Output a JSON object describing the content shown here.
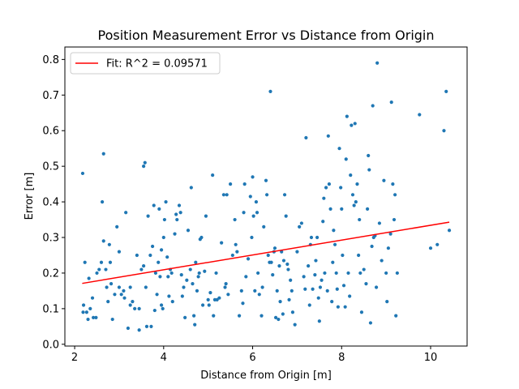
{
  "chart_data": {
    "type": "scatter",
    "title": "Position Measurement Error vs Distance from Origin",
    "xlabel": "Distance from Origin [m]",
    "ylabel": "Error [m]",
    "xlim": [
      1.78,
      10.82
    ],
    "ylim": [
      -0.005,
      0.835
    ],
    "xticks": [
      2,
      4,
      6,
      8,
      10
    ],
    "yticks": [
      0.0,
      0.1,
      0.2,
      0.3,
      0.4,
      0.5,
      0.6,
      0.7,
      0.8
    ],
    "grid": false,
    "legend_position": "top-left",
    "legend": [
      {
        "label": "Fit: R^2 = 0.09571",
        "color": "#ff0000"
      }
    ],
    "fit_line": {
      "x": [
        2.17,
        10.42
      ],
      "y": [
        0.171,
        0.343
      ],
      "color": "#ff0000"
    },
    "point_color": "#1f77b4",
    "points": [
      [
        2.18,
        0.48
      ],
      [
        2.23,
        0.23
      ],
      [
        2.2,
        0.11
      ],
      [
        2.19,
        0.09
      ],
      [
        2.27,
        0.09
      ],
      [
        2.3,
        0.07
      ],
      [
        2.32,
        0.185
      ],
      [
        2.35,
        0.1
      ],
      [
        2.4,
        0.13
      ],
      [
        2.42,
        0.075
      ],
      [
        2.48,
        0.075
      ],
      [
        2.5,
        0.2
      ],
      [
        2.55,
        0.21
      ],
      [
        2.6,
        0.23
      ],
      [
        2.62,
        0.4
      ],
      [
        2.65,
        0.535
      ],
      [
        2.65,
        0.29
      ],
      [
        2.7,
        0.21
      ],
      [
        2.72,
        0.16
      ],
      [
        2.75,
        0.12
      ],
      [
        2.78,
        0.28
      ],
      [
        2.8,
        0.23
      ],
      [
        2.82,
        0.17
      ],
      [
        2.85,
        0.07
      ],
      [
        2.9,
        0.14
      ],
      [
        2.95,
        0.33
      ],
      [
        3.0,
        0.26
      ],
      [
        3.0,
        0.16
      ],
      [
        3.05,
        0.14
      ],
      [
        3.1,
        0.15
      ],
      [
        3.12,
        0.13
      ],
      [
        3.15,
        0.37
      ],
      [
        3.2,
        0.045
      ],
      [
        3.25,
        0.11
      ],
      [
        3.25,
        0.16
      ],
      [
        3.3,
        0.12
      ],
      [
        3.35,
        0.1
      ],
      [
        3.4,
        0.25
      ],
      [
        3.45,
        0.1
      ],
      [
        3.45,
        0.04
      ],
      [
        3.5,
        0.21
      ],
      [
        3.55,
        0.22
      ],
      [
        3.55,
        0.5
      ],
      [
        3.58,
        0.51
      ],
      [
        3.6,
        0.16
      ],
      [
        3.62,
        0.05
      ],
      [
        3.65,
        0.36
      ],
      [
        3.7,
        0.25
      ],
      [
        3.72,
        0.05
      ],
      [
        3.75,
        0.275
      ],
      [
        3.78,
        0.39
      ],
      [
        3.8,
        0.095
      ],
      [
        3.82,
        0.2
      ],
      [
        3.85,
        0.14
      ],
      [
        3.88,
        0.23
      ],
      [
        3.9,
        0.38
      ],
      [
        3.92,
        0.19
      ],
      [
        3.95,
        0.265
      ],
      [
        3.95,
        0.11
      ],
      [
        3.98,
        0.1
      ],
      [
        4.0,
        0.3
      ],
      [
        4.02,
        0.35
      ],
      [
        4.05,
        0.4
      ],
      [
        4.08,
        0.245
      ],
      [
        4.1,
        0.19
      ],
      [
        4.12,
        0.135
      ],
      [
        4.15,
        0.21
      ],
      [
        4.18,
        0.2
      ],
      [
        4.2,
        0.12
      ],
      [
        4.25,
        0.31
      ],
      [
        4.28,
        0.365
      ],
      [
        4.3,
        0.35
      ],
      [
        4.35,
        0.39
      ],
      [
        4.38,
        0.37
      ],
      [
        4.4,
        0.195
      ],
      [
        4.42,
        0.135
      ],
      [
        4.45,
        0.16
      ],
      [
        4.48,
        0.075
      ],
      [
        4.52,
        0.18
      ],
      [
        4.55,
        0.32
      ],
      [
        4.6,
        0.21
      ],
      [
        4.62,
        0.44
      ],
      [
        4.65,
        0.17
      ],
      [
        4.68,
        0.08
      ],
      [
        4.7,
        0.055
      ],
      [
        4.72,
        0.23
      ],
      [
        4.75,
        0.15
      ],
      [
        4.78,
        0.19
      ],
      [
        4.8,
        0.2
      ],
      [
        4.82,
        0.295
      ],
      [
        4.85,
        0.3
      ],
      [
        4.88,
        0.11
      ],
      [
        4.92,
        0.205
      ],
      [
        4.95,
        0.36
      ],
      [
        5.0,
        0.125
      ],
      [
        5.02,
        0.11
      ],
      [
        5.05,
        0.145
      ],
      [
        5.1,
        0.475
      ],
      [
        5.12,
        0.08
      ],
      [
        5.15,
        0.125
      ],
      [
        5.18,
        0.2
      ],
      [
        5.2,
        0.125
      ],
      [
        5.25,
        0.13
      ],
      [
        5.3,
        0.285
      ],
      [
        5.35,
        0.42
      ],
      [
        5.38,
        0.16
      ],
      [
        5.4,
        0.17
      ],
      [
        5.42,
        0.42
      ],
      [
        5.45,
        0.14
      ],
      [
        5.5,
        0.45
      ],
      [
        5.55,
        0.25
      ],
      [
        5.6,
        0.35
      ],
      [
        5.62,
        0.28
      ],
      [
        5.65,
        0.26
      ],
      [
        5.7,
        0.08
      ],
      [
        5.75,
        0.15
      ],
      [
        5.78,
        0.115
      ],
      [
        5.8,
        0.37
      ],
      [
        5.82,
        0.45
      ],
      [
        5.85,
        0.19
      ],
      [
        5.9,
        0.24
      ],
      [
        5.95,
        0.415
      ],
      [
        5.98,
        0.3
      ],
      [
        6.0,
        0.47
      ],
      [
        6.02,
        0.36
      ],
      [
        6.05,
        0.15
      ],
      [
        6.08,
        0.4
      ],
      [
        6.1,
        0.37
      ],
      [
        6.12,
        0.2
      ],
      [
        6.15,
        0.14
      ],
      [
        6.2,
        0.08
      ],
      [
        6.22,
        0.16
      ],
      [
        6.25,
        0.33
      ],
      [
        6.3,
        0.46
      ],
      [
        6.32,
        0.42
      ],
      [
        6.35,
        0.25
      ],
      [
        6.38,
        0.23
      ],
      [
        6.4,
        0.71
      ],
      [
        6.42,
        0.23
      ],
      [
        6.45,
        0.195
      ],
      [
        6.48,
        0.26
      ],
      [
        6.5,
        0.27
      ],
      [
        6.52,
        0.075
      ],
      [
        6.55,
        0.15
      ],
      [
        6.58,
        0.07
      ],
      [
        6.6,
        0.22
      ],
      [
        6.62,
        0.12
      ],
      [
        6.65,
        0.26
      ],
      [
        6.68,
        0.085
      ],
      [
        6.7,
        0.235
      ],
      [
        6.72,
        0.42
      ],
      [
        6.75,
        0.36
      ],
      [
        6.78,
        0.225
      ],
      [
        6.8,
        0.21
      ],
      [
        6.82,
        0.125
      ],
      [
        6.85,
        0.18
      ],
      [
        6.88,
        0.15
      ],
      [
        6.9,
        0.09
      ],
      [
        6.95,
        0.055
      ],
      [
        7.0,
        0.26
      ],
      [
        7.05,
        0.33
      ],
      [
        7.1,
        0.34
      ],
      [
        7.15,
        0.19
      ],
      [
        7.18,
        0.155
      ],
      [
        7.2,
        0.58
      ],
      [
        7.25,
        0.22
      ],
      [
        7.28,
        0.11
      ],
      [
        7.3,
        0.28
      ],
      [
        7.32,
        0.3
      ],
      [
        7.35,
        0.155
      ],
      [
        7.4,
        0.195
      ],
      [
        7.42,
        0.235
      ],
      [
        7.45,
        0.3
      ],
      [
        7.48,
        0.13
      ],
      [
        7.5,
        0.065
      ],
      [
        7.52,
        0.16
      ],
      [
        7.55,
        0.18
      ],
      [
        7.58,
        0.345
      ],
      [
        7.6,
        0.41
      ],
      [
        7.62,
        0.2
      ],
      [
        7.65,
        0.44
      ],
      [
        7.68,
        0.15
      ],
      [
        7.7,
        0.585
      ],
      [
        7.72,
        0.45
      ],
      [
        7.75,
        0.38
      ],
      [
        7.78,
        0.12
      ],
      [
        7.8,
        0.23
      ],
      [
        7.82,
        0.32
      ],
      [
        7.85,
        0.28
      ],
      [
        7.88,
        0.2
      ],
      [
        7.9,
        0.155
      ],
      [
        7.92,
        0.105
      ],
      [
        7.95,
        0.55
      ],
      [
        7.98,
        0.44
      ],
      [
        8.0,
        0.38
      ],
      [
        8.02,
        0.25
      ],
      [
        8.05,
        0.165
      ],
      [
        8.08,
        0.105
      ],
      [
        8.1,
        0.52
      ],
      [
        8.12,
        0.64
      ],
      [
        8.15,
        0.2
      ],
      [
        8.18,
        0.135
      ],
      [
        8.2,
        0.475
      ],
      [
        8.22,
        0.615
      ],
      [
        8.25,
        0.42
      ],
      [
        8.28,
        0.39
      ],
      [
        8.3,
        0.62
      ],
      [
        8.32,
        0.4
      ],
      [
        8.35,
        0.45
      ],
      [
        8.38,
        0.25
      ],
      [
        8.4,
        0.35
      ],
      [
        8.42,
        0.2
      ],
      [
        8.45,
        0.09
      ],
      [
        8.5,
        0.21
      ],
      [
        8.55,
        0.17
      ],
      [
        8.58,
        0.38
      ],
      [
        8.6,
        0.53
      ],
      [
        8.62,
        0.49
      ],
      [
        8.65,
        0.06
      ],
      [
        8.68,
        0.275
      ],
      [
        8.7,
        0.67
      ],
      [
        8.72,
        0.3
      ],
      [
        8.75,
        0.305
      ],
      [
        8.78,
        0.16
      ],
      [
        8.8,
        0.79
      ],
      [
        8.85,
        0.34
      ],
      [
        8.9,
        0.235
      ],
      [
        8.95,
        0.46
      ],
      [
        9.0,
        0.2
      ],
      [
        9.02,
        0.12
      ],
      [
        9.05,
        0.27
      ],
      [
        9.1,
        0.31
      ],
      [
        9.12,
        0.68
      ],
      [
        9.15,
        0.45
      ],
      [
        9.18,
        0.35
      ],
      [
        9.2,
        0.42
      ],
      [
        9.22,
        0.08
      ],
      [
        9.25,
        0.2
      ],
      [
        9.75,
        0.645
      ],
      [
        10.0,
        0.27
      ],
      [
        10.15,
        0.28
      ],
      [
        10.3,
        0.6
      ],
      [
        10.35,
        0.71
      ],
      [
        10.42,
        0.32
      ]
    ]
  }
}
